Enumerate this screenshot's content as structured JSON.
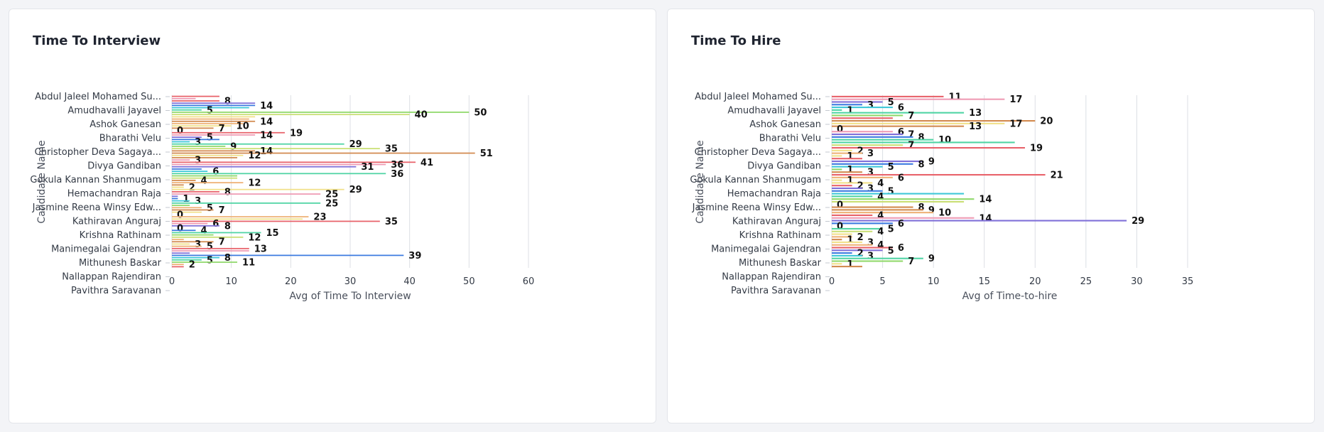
{
  "cards": [
    {
      "title": "Time To Interview"
    },
    {
      "title": "Time To Hire"
    }
  ],
  "palette": [
    "#e8626a",
    "#ef9bb4",
    "#7f6fd8",
    "#3c7be0",
    "#3ec8d8",
    "#4fd4a4",
    "#8fd86a",
    "#c9df74",
    "#f1e089",
    "#eeb176",
    "#d28a4f"
  ],
  "chart_data": [
    {
      "type": "bar",
      "orientation": "horizontal",
      "title": "Time To Interview",
      "xlabel": "Avg of Time To Interview",
      "ylabel": "Candidate Name",
      "xlim": [
        0,
        60
      ],
      "xticks": [
        0,
        10,
        20,
        30,
        40,
        50,
        60
      ],
      "grid": true,
      "categories": [
        "Abdul Jaleel Mohamed Su...",
        "Amudhavalli Jayavel",
        "Ashok Ganesan",
        "Bharathi Velu",
        "Christopher Deva Sagaya...",
        "Divya Gandiban",
        "Gokula Kannan Shanmugam",
        "Hemachandran Raja",
        "Jasmine Reena Winsy Edw...",
        "Kathiravan Anguraj",
        "Krishna Rathinam",
        "Manimegalai Gajendran",
        "Mithunesh Baskar",
        "Nallappan Rajendiran",
        "Pavithra Saravanan"
      ],
      "bars": [
        {
          "v": 8,
          "c": 0
        },
        {
          "v": 4,
          "c": 1
        },
        {
          "v": 8,
          "c": 0,
          "label": "8"
        },
        {
          "v": 14,
          "c": 2
        },
        {
          "v": 14,
          "c": 3,
          "label": "14"
        },
        {
          "v": 13,
          "c": 4
        },
        {
          "v": 5,
          "c": 5,
          "label": "5"
        },
        {
          "v": 50,
          "c": 6,
          "label": "50"
        },
        {
          "v": 40,
          "c": 7,
          "label": "40"
        },
        {
          "v": 14,
          "c": 8
        },
        {
          "v": 13,
          "c": 9
        },
        {
          "v": 14,
          "c": 10,
          "label": "14"
        },
        {
          "v": 12,
          "c": 9
        },
        {
          "v": 10,
          "c": 8,
          "label": "10"
        },
        {
          "v": 7,
          "c": 10,
          "label": "7"
        },
        {
          "v": 0,
          "c": 0,
          "label": "0"
        },
        {
          "v": 19,
          "c": 0,
          "label": "19"
        },
        {
          "v": 14,
          "c": 1,
          "label": "14"
        },
        {
          "v": 5,
          "c": 2,
          "label": "5"
        },
        {
          "v": 8,
          "c": 3
        },
        {
          "v": 3,
          "c": 4,
          "label": "3"
        },
        {
          "v": 29,
          "c": 5,
          "label": "29"
        },
        {
          "v": 9,
          "c": 6,
          "label": "9"
        },
        {
          "v": 35,
          "c": 7,
          "label": "35"
        },
        {
          "v": 14,
          "c": 10,
          "label": "14"
        },
        {
          "v": 51,
          "c": 10,
          "label": "51"
        },
        {
          "v": 12,
          "c": 8,
          "label": "12"
        },
        {
          "v": 11,
          "c": 10
        },
        {
          "v": 3,
          "c": 1,
          "label": "3"
        },
        {
          "v": 41,
          "c": 0,
          "label": "41"
        },
        {
          "v": 36,
          "c": 1,
          "label": "36"
        },
        {
          "v": 31,
          "c": 2,
          "label": "31"
        },
        {
          "v": 5,
          "c": 3
        },
        {
          "v": 6,
          "c": 4,
          "label": "6"
        },
        {
          "v": 36,
          "c": 5,
          "label": "36"
        },
        {
          "v": 11,
          "c": 6
        },
        {
          "v": 11,
          "c": 7
        },
        {
          "v": 4,
          "c": 10,
          "label": "4"
        },
        {
          "v": 12,
          "c": 9,
          "label": "12"
        },
        {
          "v": 2,
          "c": 10
        },
        {
          "v": 2,
          "c": 8,
          "label": "2"
        },
        {
          "v": 29,
          "c": 8,
          "label": "29"
        },
        {
          "v": 8,
          "c": 0,
          "label": "8"
        },
        {
          "v": 25,
          "c": 1,
          "label": "25"
        },
        {
          "v": 1,
          "c": 2
        },
        {
          "v": 1,
          "c": 3,
          "label": "1"
        },
        {
          "v": 3,
          "c": 4,
          "label": "3"
        },
        {
          "v": 25,
          "c": 5,
          "label": "25"
        },
        {
          "v": 3,
          "c": 6
        },
        {
          "v": 5,
          "c": 9,
          "label": "5"
        },
        {
          "v": 7,
          "c": 10,
          "label": "7"
        },
        {
          "v": 5,
          "c": 8
        },
        {
          "v": 0,
          "c": 0,
          "label": "0"
        },
        {
          "v": 23,
          "c": 9,
          "label": "23"
        },
        {
          "v": 22,
          "c": 8
        },
        {
          "v": 35,
          "c": 0,
          "label": "35"
        },
        {
          "v": 6,
          "c": 1,
          "label": "6"
        },
        {
          "v": 8,
          "c": 2,
          "label": "8"
        },
        {
          "v": 0,
          "c": 3,
          "label": "0"
        },
        {
          "v": 4,
          "c": 3,
          "label": "4"
        },
        {
          "v": 15,
          "c": 5,
          "label": "15"
        },
        {
          "v": 7,
          "c": 6
        },
        {
          "v": 12,
          "c": 7,
          "label": "12"
        },
        {
          "v": 2,
          "c": 9
        },
        {
          "v": 7,
          "c": 10,
          "label": "7"
        },
        {
          "v": 3,
          "c": 8,
          "label": "3"
        },
        {
          "v": 5,
          "c": 9,
          "label": "5"
        },
        {
          "v": 13,
          "c": 0,
          "label": "13"
        },
        {
          "v": 13,
          "c": 1
        },
        {
          "v": 3,
          "c": 2
        },
        {
          "v": 39,
          "c": 3,
          "label": "39"
        },
        {
          "v": 8,
          "c": 4,
          "label": "8"
        },
        {
          "v": 5,
          "c": 5,
          "label": "5"
        },
        {
          "v": 11,
          "c": 6,
          "label": "11"
        },
        {
          "v": 2,
          "c": 9,
          "label": "2"
        },
        {
          "v": 2,
          "c": 0
        }
      ]
    },
    {
      "type": "bar",
      "orientation": "horizontal",
      "title": "Time To Hire",
      "xlabel": "Avg of Time-to-hire",
      "ylabel": "Candidate Name",
      "xlim": [
        0,
        35
      ],
      "xticks": [
        0,
        5,
        10,
        15,
        20,
        25,
        30,
        35
      ],
      "grid": true,
      "categories": [
        "Abdul Jaleel Mohamed Su...",
        "Amudhavalli Jayavel",
        "Ashok Ganesan",
        "Bharathi Velu",
        "Christopher Deva Sagaya...",
        "Divya Gandiban",
        "Gokula Kannan Shanmugam",
        "Hemachandran Raja",
        "Jasmine Reena Winsy Edw...",
        "Kathiravan Anguraj",
        "Krishna Rathinam",
        "Manimegalai Gajendran",
        "Mithunesh Baskar",
        "Nallappan Rajendiran",
        "Pavithra Saravanan"
      ],
      "bars": [
        {
          "v": 11,
          "c": 0,
          "label": "11"
        },
        {
          "v": 17,
          "c": 1,
          "label": "17"
        },
        {
          "v": 5,
          "c": 2,
          "label": "5"
        },
        {
          "v": 3,
          "c": 3,
          "label": "3"
        },
        {
          "v": 6,
          "c": 4,
          "label": "6"
        },
        {
          "v": 1,
          "c": 5,
          "label": "1"
        },
        {
          "v": 13,
          "c": 5,
          "label": "13"
        },
        {
          "v": 7,
          "c": 6,
          "label": "7"
        },
        {
          "v": 6,
          "c": 0
        },
        {
          "v": 20,
          "c": 10,
          "label": "20"
        },
        {
          "v": 17,
          "c": 8,
          "label": "17"
        },
        {
          "v": 13,
          "c": 10,
          "label": "13"
        },
        {
          "v": 0,
          "c": 0,
          "label": "0"
        },
        {
          "v": 6,
          "c": 1,
          "label": "6"
        },
        {
          "v": 7,
          "c": 2,
          "label": "7"
        },
        {
          "v": 8,
          "c": 3,
          "label": "8"
        },
        {
          "v": 10,
          "c": 5,
          "label": "10"
        },
        {
          "v": 18,
          "c": 5
        },
        {
          "v": 7,
          "c": 7,
          "label": "7"
        },
        {
          "v": 19,
          "c": 0,
          "label": "19"
        },
        {
          "v": 2,
          "c": 8,
          "label": "2"
        },
        {
          "v": 3,
          "c": 9,
          "label": "3"
        },
        {
          "v": 1,
          "c": 8,
          "label": "1"
        },
        {
          "v": 3,
          "c": 0
        },
        {
          "v": 9,
          "c": 2,
          "label": "9"
        },
        {
          "v": 8,
          "c": 3,
          "label": "8"
        },
        {
          "v": 5,
          "c": 4,
          "label": "5"
        },
        {
          "v": 1,
          "c": 6,
          "label": "1"
        },
        {
          "v": 3,
          "c": 10,
          "label": "3"
        },
        {
          "v": 21,
          "c": 0,
          "label": "21"
        },
        {
          "v": 6,
          "c": 9,
          "label": "6"
        },
        {
          "v": 1,
          "c": 8,
          "label": "1"
        },
        {
          "v": 4,
          "c": 8,
          "label": "4"
        },
        {
          "v": 2,
          "c": 0,
          "label": "2"
        },
        {
          "v": 3,
          "c": 2,
          "label": "3"
        },
        {
          "v": 5,
          "c": 3,
          "label": "5"
        },
        {
          "v": 13,
          "c": 4
        },
        {
          "v": 4,
          "c": 5,
          "label": "4"
        },
        {
          "v": 14,
          "c": 6,
          "label": "14"
        },
        {
          "v": 13,
          "c": 7
        },
        {
          "v": 0,
          "c": 9,
          "label": "0"
        },
        {
          "v": 8,
          "c": 10,
          "label": "8"
        },
        {
          "v": 9,
          "c": 10,
          "label": "9"
        },
        {
          "v": 10,
          "c": 9,
          "label": "10"
        },
        {
          "v": 4,
          "c": 0,
          "label": "4"
        },
        {
          "v": 14,
          "c": 1,
          "label": "14"
        },
        {
          "v": 29,
          "c": 2,
          "label": "29"
        },
        {
          "v": 6,
          "c": 3,
          "label": "6"
        },
        {
          "v": 0,
          "c": 4,
          "label": "0"
        },
        {
          "v": 5,
          "c": 5,
          "label": "5"
        },
        {
          "v": 4,
          "c": 7,
          "label": "4"
        },
        {
          "v": 2,
          "c": 8
        },
        {
          "v": 2,
          "c": 9,
          "label": "2"
        },
        {
          "v": 1,
          "c": 10,
          "label": "1"
        },
        {
          "v": 3,
          "c": 8,
          "label": "3"
        },
        {
          "v": 4,
          "c": 9,
          "label": "4"
        },
        {
          "v": 6,
          "c": 0,
          "label": "6"
        },
        {
          "v": 5,
          "c": 2,
          "label": "5"
        },
        {
          "v": 2,
          "c": 3,
          "label": "2"
        },
        {
          "v": 3,
          "c": 4,
          "label": "3"
        },
        {
          "v": 9,
          "c": 5,
          "label": "9"
        },
        {
          "v": 7,
          "c": 6,
          "label": "7"
        },
        {
          "v": 1,
          "c": 8,
          "label": "1"
        },
        {
          "v": 3,
          "c": 10
        }
      ]
    }
  ]
}
